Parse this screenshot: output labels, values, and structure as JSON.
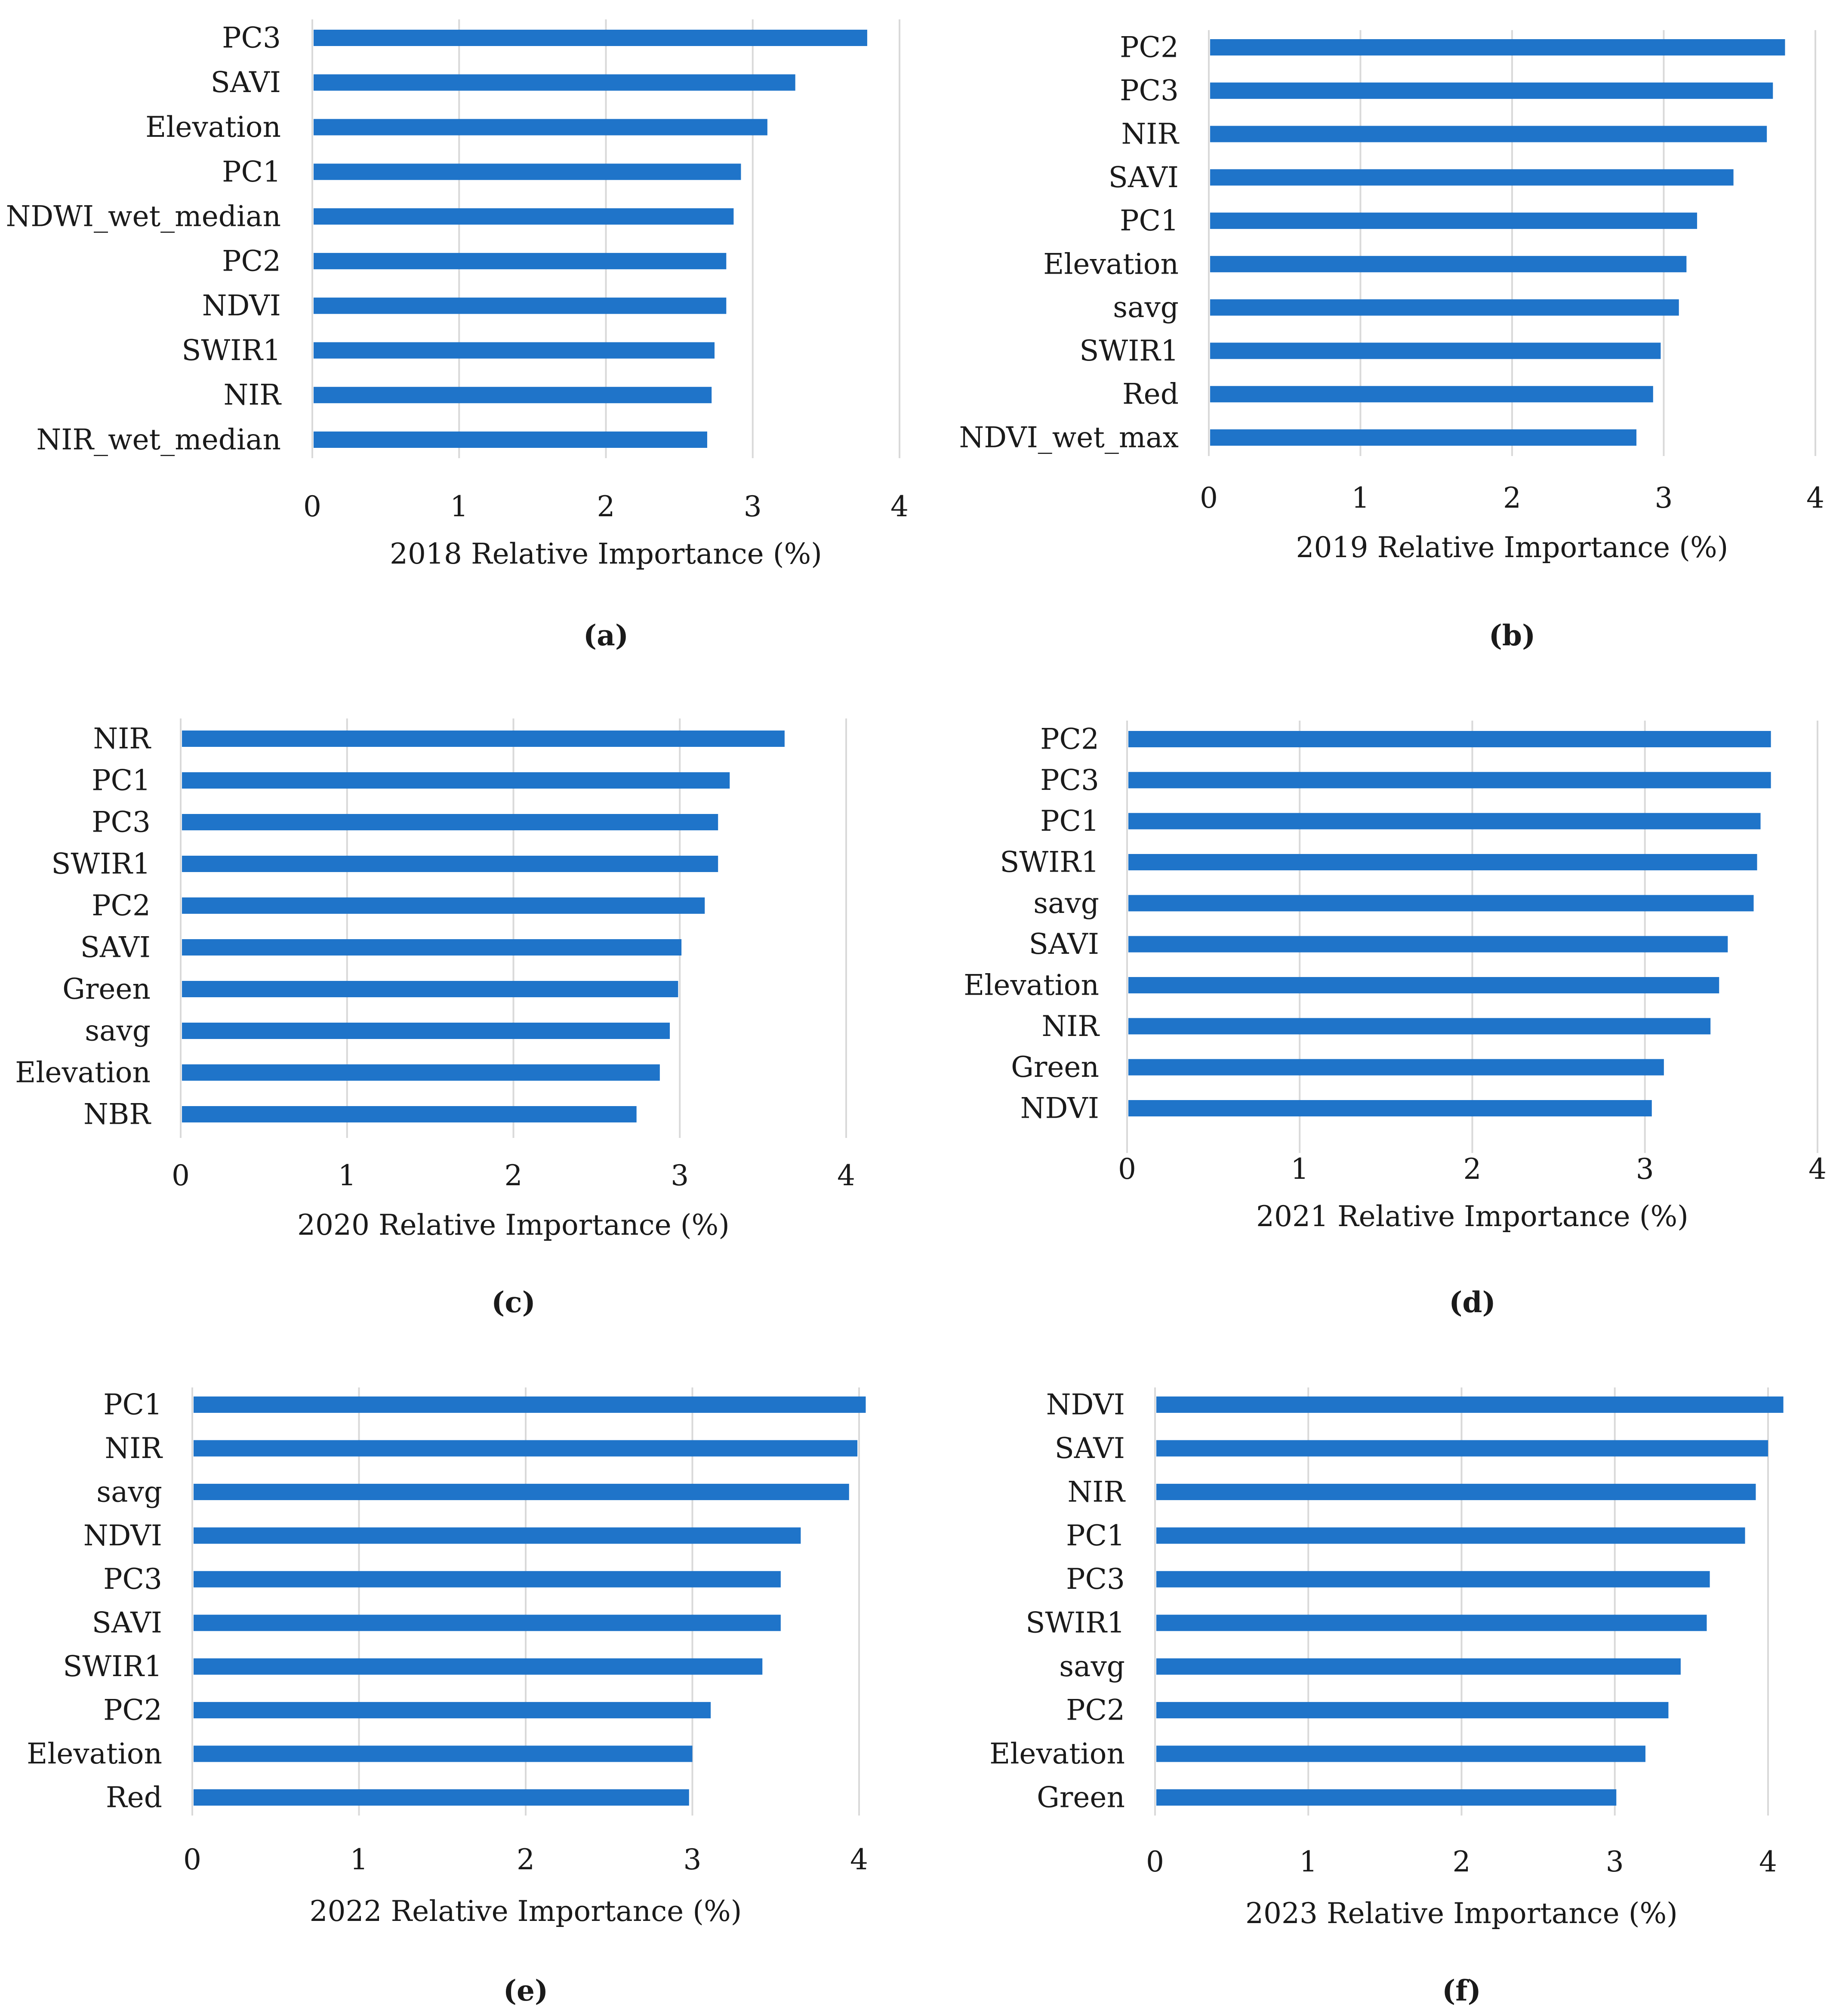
{
  "colors": {
    "bar": "#1F74C9",
    "grid": "#D9D9D9",
    "text": "#1a1a1a"
  },
  "chart_data": [
    {
      "type": "bar",
      "orientation": "horizontal",
      "panel_label": "(a)",
      "xlabel": "2018 Relative Importance (%)",
      "xlim": [
        0,
        4
      ],
      "xticks": [
        "0",
        "1",
        "2",
        "3",
        "4"
      ],
      "categories": [
        "PC3",
        "SAVI",
        "Elevation",
        "PC1",
        "NDWI_wet_median",
        "PC2",
        "NDVI",
        "SWIR1",
        "NIR",
        "NIR_wet_median"
      ],
      "values": [
        3.78,
        3.29,
        3.1,
        2.92,
        2.87,
        2.82,
        2.82,
        2.74,
        2.72,
        2.69
      ],
      "grid": true
    },
    {
      "type": "bar",
      "orientation": "horizontal",
      "panel_label": "(b)",
      "xlabel": "2019 Relative Importance (%)",
      "xlim": [
        0,
        4
      ],
      "xticks": [
        "0",
        "1",
        "2",
        "3",
        "4"
      ],
      "categories": [
        "PC2",
        "PC3",
        "NIR",
        "SAVI",
        "PC1",
        "Elevation",
        "savg",
        "SWIR1",
        "Red",
        "NDVI_wet_max"
      ],
      "values": [
        3.8,
        3.72,
        3.68,
        3.46,
        3.22,
        3.15,
        3.1,
        2.98,
        2.93,
        2.82
      ],
      "grid": true
    },
    {
      "type": "bar",
      "orientation": "horizontal",
      "panel_label": "(c)",
      "xlabel": "2020 Relative Importance (%)",
      "xlim": [
        0,
        4
      ],
      "xticks": [
        "0",
        "1",
        "2",
        "3",
        "4"
      ],
      "categories": [
        "NIR",
        "PC1",
        "PC3",
        "SWIR1",
        "PC2",
        "SAVI",
        "Green",
        "savg",
        "Elevation",
        "NBR"
      ],
      "values": [
        3.63,
        3.3,
        3.23,
        3.23,
        3.15,
        3.01,
        2.99,
        2.94,
        2.88,
        2.74
      ],
      "grid": true
    },
    {
      "type": "bar",
      "orientation": "horizontal",
      "panel_label": "(d)",
      "xlabel": "2021 Relative Importance (%)",
      "xlim": [
        0,
        4
      ],
      "xticks": [
        "0",
        "1",
        "2",
        "3",
        "4"
      ],
      "categories": [
        "PC2",
        "PC3",
        "PC1",
        "SWIR1",
        "savg",
        "SAVI",
        "Elevation",
        "NIR",
        "Green",
        "NDVI"
      ],
      "values": [
        3.73,
        3.73,
        3.67,
        3.65,
        3.63,
        3.48,
        3.43,
        3.38,
        3.11,
        3.04
      ],
      "grid": true
    },
    {
      "type": "bar",
      "orientation": "horizontal",
      "panel_label": "(e)",
      "xlabel": "2022 Relative Importance (%)",
      "xlim": [
        0,
        4
      ],
      "xticks": [
        "0",
        "1",
        "2",
        "3",
        "4"
      ],
      "categories": [
        "PC1",
        "NIR",
        "savg",
        "NDVI",
        "PC3",
        "SAVI",
        "SWIR1",
        "PC2",
        "Elevation",
        "Red"
      ],
      "values": [
        4.04,
        3.99,
        3.94,
        3.65,
        3.53,
        3.53,
        3.42,
        3.11,
        3.0,
        2.98
      ],
      "grid": true
    },
    {
      "type": "bar",
      "orientation": "horizontal",
      "panel_label": "(f)",
      "xlabel": "2023 Relative Importance (%)",
      "xlim": [
        0,
        4
      ],
      "xticks": [
        "0",
        "1",
        "2",
        "3",
        "4"
      ],
      "categories": [
        "NDVI",
        "SAVI",
        "NIR",
        "PC1",
        "PC3",
        "SWIR1",
        "savg",
        "PC2",
        "Elevation",
        "Green"
      ],
      "values": [
        4.1,
        4.0,
        3.92,
        3.85,
        3.62,
        3.6,
        3.43,
        3.35,
        3.2,
        3.01
      ],
      "grid": true
    }
  ]
}
